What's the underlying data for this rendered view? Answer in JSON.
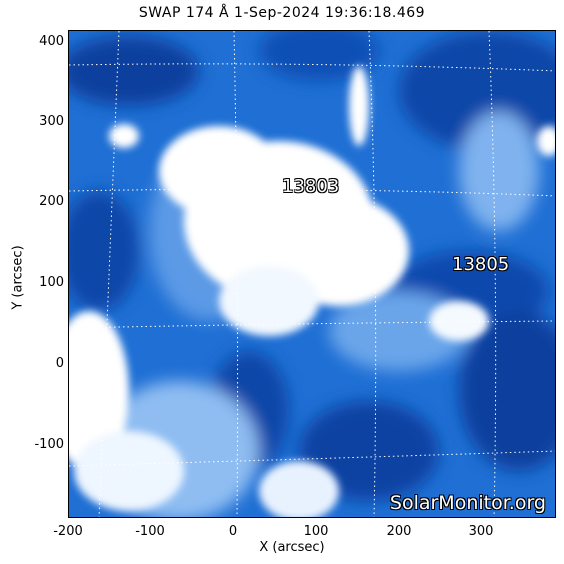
{
  "title": "SWAP 174 Å  1-Sep-2024 19:36:18.469",
  "axes": {
    "xlabel": "X (arcsec)",
    "ylabel": "Y (arcsec)",
    "xticks": [
      "-200",
      "-100",
      "0",
      "100",
      "200",
      "300"
    ],
    "yticks": [
      "400",
      "300",
      "200",
      "100",
      "0",
      "-100"
    ],
    "xrange": [
      -205,
      395
    ],
    "yrange": [
      -190,
      420
    ]
  },
  "regions": [
    {
      "label": "13803",
      "x": 60,
      "y": 215
    },
    {
      "label": "13805",
      "x": 265,
      "y": 125
    }
  ],
  "watermark": "SolarMonitor.org",
  "colors": {
    "background": "#1f6fd4",
    "bright": "#ffffff",
    "dark": "#0b3f9e",
    "grid": "#ffffff"
  }
}
